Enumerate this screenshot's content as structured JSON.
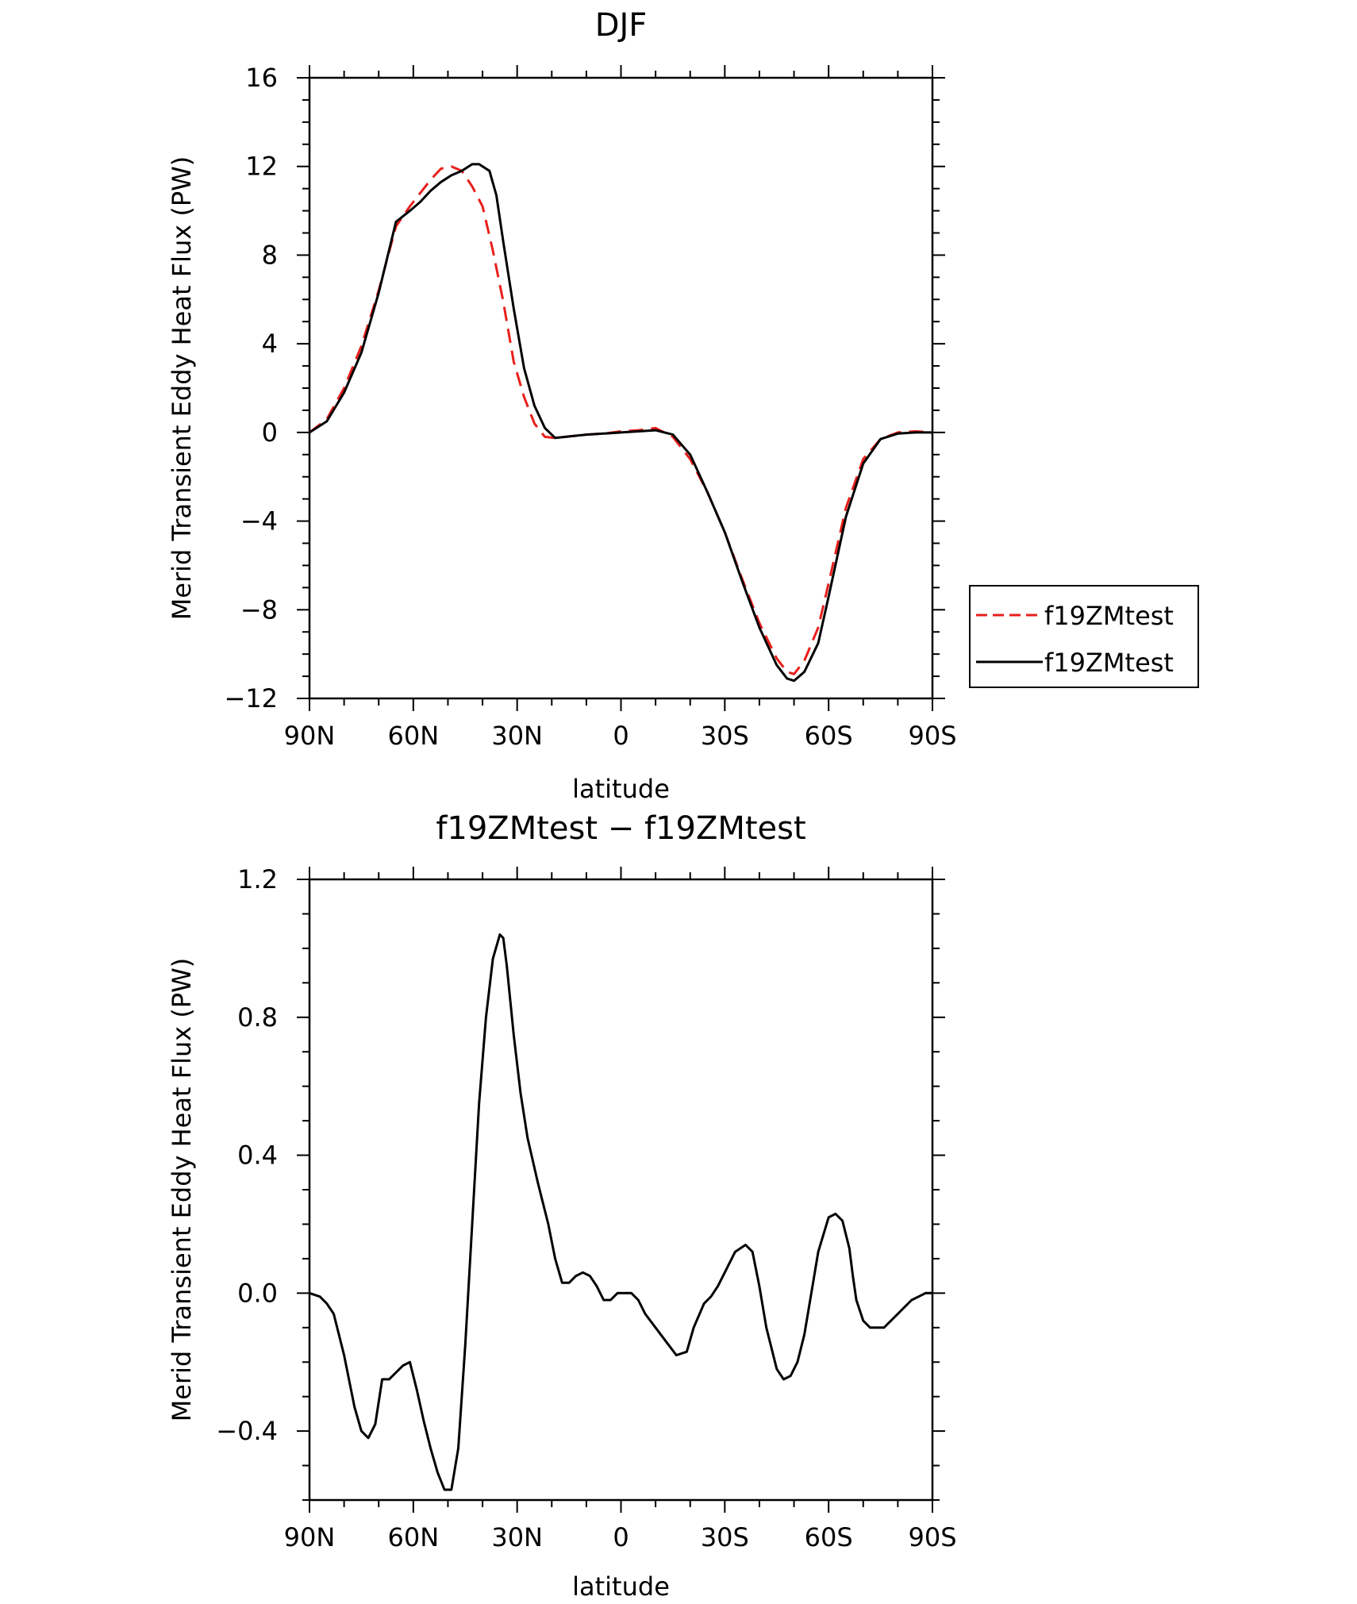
{
  "chart_data": [
    {
      "type": "line",
      "title": "DJF",
      "xlabel": "latitude",
      "ylabel": "Merid Transient Eddy Heat Flux (PW)",
      "xlim": [
        90,
        -90
      ],
      "ylim": [
        -12,
        16
      ],
      "xticks": [
        90,
        60,
        30,
        0,
        -30,
        -60,
        -90
      ],
      "xtick_labels": [
        "90N",
        "60N",
        "30N",
        "0",
        "30S",
        "60S",
        "90S"
      ],
      "yticks": [
        -12,
        -8,
        -4,
        0,
        4,
        8,
        12,
        16
      ],
      "ytick_labels": [
        "−12",
        "−8",
        "−4",
        "0",
        "4",
        "8",
        "12",
        "16"
      ],
      "legend_position": "outside-right",
      "series": [
        {
          "name": "f19ZMtest",
          "color": "#e8201c",
          "dash": "dashed",
          "x": [
            90,
            85,
            80,
            75,
            70,
            65,
            61,
            58,
            55,
            52,
            49,
            46,
            43,
            40,
            37,
            34,
            31,
            28,
            25,
            22,
            19,
            16,
            13,
            10,
            5,
            0,
            -5,
            -10,
            -15,
            -20,
            -25,
            -30,
            -35,
            -40,
            -45,
            -48,
            -50,
            -53,
            -57,
            -60,
            -65,
            -70,
            -75,
            -80,
            -85,
            -90
          ],
          "values": [
            0,
            0.6,
            2.0,
            3.9,
            6.4,
            9.3,
            10.2,
            10.8,
            11.4,
            11.9,
            12.0,
            11.8,
            11.1,
            10.2,
            8.2,
            5.9,
            3.2,
            1.6,
            0.4,
            -0.2,
            -0.25,
            -0.2,
            -0.15,
            -0.1,
            -0.05,
            0.05,
            0.1,
            0.2,
            -0.2,
            -1.2,
            -2.7,
            -4.5,
            -6.6,
            -8.6,
            -10.2,
            -10.8,
            -10.9,
            -10.3,
            -8.8,
            -6.8,
            -3.4,
            -1.2,
            -0.3,
            0.0,
            0.05,
            0
          ]
        },
        {
          "name": "f19ZMtest",
          "color": "#000000",
          "dash": "solid",
          "x": [
            90,
            85,
            80,
            75,
            70,
            65,
            61,
            58,
            55,
            52,
            49,
            46,
            43,
            41,
            38,
            36,
            34,
            31,
            28,
            25,
            22,
            19,
            16,
            13,
            10,
            5,
            0,
            -5,
            -10,
            -15,
            -20,
            -25,
            -30,
            -35,
            -40,
            -45,
            -48,
            -50,
            -53,
            -57,
            -60,
            -65,
            -70,
            -75,
            -80,
            -85,
            -90
          ],
          "values": [
            0,
            0.5,
            1.8,
            3.6,
            6.3,
            9.5,
            10.0,
            10.4,
            10.9,
            11.3,
            11.6,
            11.8,
            12.1,
            12.1,
            11.8,
            10.7,
            8.6,
            5.6,
            2.9,
            1.2,
            0.2,
            -0.25,
            -0.2,
            -0.15,
            -0.1,
            -0.05,
            0.0,
            0.05,
            0.1,
            -0.1,
            -1.0,
            -2.7,
            -4.5,
            -6.7,
            -8.8,
            -10.5,
            -11.1,
            -11.2,
            -10.8,
            -9.5,
            -7.4,
            -3.8,
            -1.4,
            -0.3,
            -0.05,
            0.0,
            0
          ]
        }
      ]
    },
    {
      "type": "line",
      "title": "f19ZMtest − f19ZMtest",
      "xlabel": "latitude",
      "ylabel": "Merid Transient Eddy Heat Flux (PW)",
      "xlim": [
        90,
        -90
      ],
      "ylim": [
        -0.6,
        1.2
      ],
      "xticks": [
        90,
        60,
        30,
        0,
        -30,
        -60,
        -90
      ],
      "xtick_labels": [
        "90N",
        "60N",
        "30N",
        "0",
        "30S",
        "60S",
        "90S"
      ],
      "yticks": [
        -0.4,
        0.0,
        0.4,
        0.8,
        1.2
      ],
      "ytick_labels": [
        "−0.4",
        "0.0",
        "0.4",
        "0.8",
        "1.2"
      ],
      "series": [
        {
          "color": "#000000",
          "dash": "solid",
          "x": [
            90,
            87,
            85,
            83,
            80,
            77,
            75,
            73,
            71,
            69,
            67,
            65,
            63,
            61,
            59,
            57,
            55,
            53,
            51,
            49,
            47,
            45,
            43,
            41,
            39,
            37,
            35,
            34,
            33,
            31,
            29,
            27,
            24,
            21,
            19,
            17,
            15,
            13,
            11,
            9,
            7,
            5,
            3,
            1,
            -1,
            -3,
            -5,
            -7,
            -10,
            -13,
            -16,
            -19,
            -21,
            -24,
            -26,
            -28,
            -30,
            -33,
            -36,
            -38,
            -40,
            -42,
            -45,
            -47,
            -49,
            -51,
            -53,
            -55,
            -57,
            -60,
            -62,
            -64,
            -66,
            -67,
            -68,
            -70,
            -72,
            -74,
            -76,
            -78,
            -80,
            -82,
            -84,
            -86,
            -88,
            -90
          ],
          "values": [
            0.0,
            -0.01,
            -0.03,
            -0.06,
            -0.18,
            -0.33,
            -0.4,
            -0.42,
            -0.38,
            -0.25,
            -0.25,
            -0.23,
            -0.21,
            -0.2,
            -0.28,
            -0.37,
            -0.45,
            -0.52,
            -0.57,
            -0.57,
            -0.45,
            -0.15,
            0.2,
            0.55,
            0.8,
            0.97,
            1.04,
            1.03,
            0.95,
            0.75,
            0.58,
            0.45,
            0.32,
            0.2,
            0.1,
            0.03,
            0.03,
            0.05,
            0.06,
            0.05,
            0.02,
            -0.02,
            -0.02,
            0.0,
            0.0,
            0.0,
            -0.02,
            -0.06,
            -0.1,
            -0.14,
            -0.18,
            -0.17,
            -0.1,
            -0.03,
            -0.01,
            0.02,
            0.06,
            0.12,
            0.14,
            0.12,
            0.02,
            -0.1,
            -0.22,
            -0.25,
            -0.24,
            -0.2,
            -0.12,
            0.0,
            0.12,
            0.22,
            0.23,
            0.21,
            0.13,
            0.05,
            -0.02,
            -0.08,
            -0.1,
            -0.1,
            -0.1,
            -0.08,
            -0.06,
            -0.04,
            -0.02,
            -0.01,
            0.0,
            0.0
          ]
        }
      ]
    }
  ]
}
